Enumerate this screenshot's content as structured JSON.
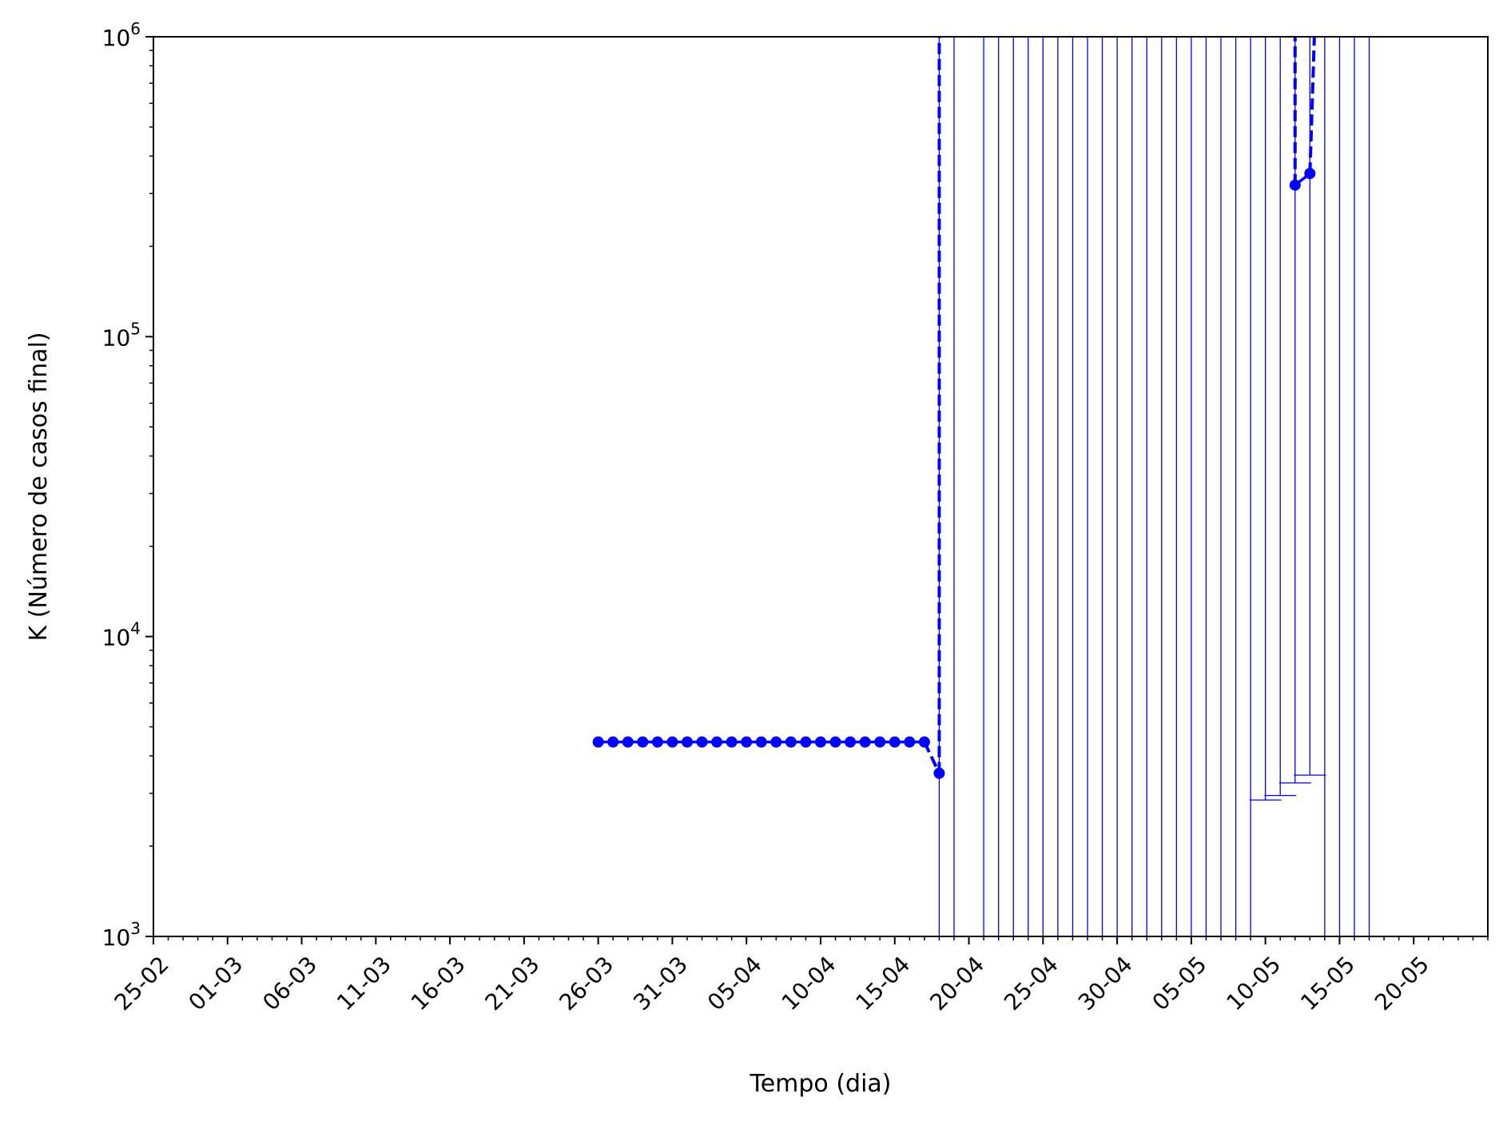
{
  "chart_data": {
    "type": "line",
    "title": "",
    "xlabel": "Tempo (dia)",
    "ylabel": "K (Número de casos final)",
    "yscale": "log",
    "ylim": [
      1000,
      1000000
    ],
    "xlim": [
      "2020-02-25",
      "2020-05-25"
    ],
    "grid": false,
    "legend": "none",
    "color": "#0000ff",
    "y_ticks": [
      {
        "value": 1000,
        "base": "10",
        "exp": "3"
      },
      {
        "value": 10000,
        "base": "10",
        "exp": "4"
      },
      {
        "value": 100000,
        "base": "10",
        "exp": "5"
      },
      {
        "value": 1000000,
        "base": "10",
        "exp": "6"
      }
    ],
    "x_ticks": [
      {
        "date": "2020-02-25",
        "label": "25-02"
      },
      {
        "date": "2020-03-01",
        "label": "01-03"
      },
      {
        "date": "2020-03-06",
        "label": "06-03"
      },
      {
        "date": "2020-03-11",
        "label": "11-03"
      },
      {
        "date": "2020-03-16",
        "label": "16-03"
      },
      {
        "date": "2020-03-21",
        "label": "21-03"
      },
      {
        "date": "2020-03-26",
        "label": "26-03"
      },
      {
        "date": "2020-03-31",
        "label": "31-03"
      },
      {
        "date": "2020-04-05",
        "label": "05-04"
      },
      {
        "date": "2020-04-10",
        "label": "10-04"
      },
      {
        "date": "2020-04-15",
        "label": "15-04"
      },
      {
        "date": "2020-04-20",
        "label": "20-04"
      },
      {
        "date": "2020-04-25",
        "label": "25-04"
      },
      {
        "date": "2020-04-30",
        "label": "30-04"
      },
      {
        "date": "2020-05-05",
        "label": "05-05"
      },
      {
        "date": "2020-05-10",
        "label": "10-05"
      },
      {
        "date": "2020-05-15",
        "label": "15-05"
      },
      {
        "date": "2020-05-20",
        "label": "20-05"
      }
    ],
    "series": [
      {
        "points": [
          {
            "x": "2020-03-26",
            "y": 4450
          },
          {
            "x": "2020-03-27",
            "y": 4450
          },
          {
            "x": "2020-03-28",
            "y": 4450
          },
          {
            "x": "2020-03-29",
            "y": 4450
          },
          {
            "x": "2020-03-30",
            "y": 4450
          },
          {
            "x": "2020-03-31",
            "y": 4450
          },
          {
            "x": "2020-04-01",
            "y": 4450
          },
          {
            "x": "2020-04-02",
            "y": 4450
          },
          {
            "x": "2020-04-03",
            "y": 4450
          },
          {
            "x": "2020-04-04",
            "y": 4450
          },
          {
            "x": "2020-04-05",
            "y": 4450
          },
          {
            "x": "2020-04-06",
            "y": 4450
          },
          {
            "x": "2020-04-07",
            "y": 4450
          },
          {
            "x": "2020-04-08",
            "y": 4450
          },
          {
            "x": "2020-04-09",
            "y": 4450
          },
          {
            "x": "2020-04-10",
            "y": 4450
          },
          {
            "x": "2020-04-11",
            "y": 4450
          },
          {
            "x": "2020-04-12",
            "y": 4450
          },
          {
            "x": "2020-04-13",
            "y": 4450
          },
          {
            "x": "2020-04-14",
            "y": 4450
          },
          {
            "x": "2020-04-15",
            "y": 4450
          },
          {
            "x": "2020-04-16",
            "y": 4450
          },
          {
            "x": "2020-04-17",
            "y": 4450
          },
          {
            "x": "2020-04-18",
            "y": 3500
          },
          {
            "x": "2020-05-12",
            "y": 320000
          },
          {
            "x": "2020-05-13",
            "y": 350000
          }
        ],
        "lower_errors": [
          {
            "x": "2020-04-18",
            "y": 1000
          },
          {
            "x": "2020-04-19",
            "y": 1000
          },
          {
            "x": "2020-04-21",
            "y": 1000
          },
          {
            "x": "2020-04-22",
            "y": 1000
          },
          {
            "x": "2020-04-23",
            "y": 1000
          },
          {
            "x": "2020-04-24",
            "y": 1000
          },
          {
            "x": "2020-04-25",
            "y": 1000
          },
          {
            "x": "2020-04-26",
            "y": 1000
          },
          {
            "x": "2020-04-27",
            "y": 1000
          },
          {
            "x": "2020-04-28",
            "y": 1000
          },
          {
            "x": "2020-04-29",
            "y": 1000
          },
          {
            "x": "2020-04-30",
            "y": 1000
          },
          {
            "x": "2020-05-01",
            "y": 1000
          },
          {
            "x": "2020-05-02",
            "y": 1000
          },
          {
            "x": "2020-05-03",
            "y": 1000
          },
          {
            "x": "2020-05-04",
            "y": 1000
          },
          {
            "x": "2020-05-05",
            "y": 1000
          },
          {
            "x": "2020-05-06",
            "y": 1000
          },
          {
            "x": "2020-05-07",
            "y": 1000
          },
          {
            "x": "2020-05-08",
            "y": 1000
          },
          {
            "x": "2020-05-09",
            "y": 1000
          },
          {
            "x": "2020-05-10",
            "y": 2850
          },
          {
            "x": "2020-05-11",
            "y": 2950
          },
          {
            "x": "2020-05-12",
            "y": 3250
          },
          {
            "x": "2020-05-13",
            "y": 3450
          },
          {
            "x": "2020-05-14",
            "y": 1000
          },
          {
            "x": "2020-05-15",
            "y": 1000
          },
          {
            "x": "2020-05-16",
            "y": 1000
          },
          {
            "x": "2020-05-17",
            "y": 1000
          }
        ],
        "dashed_segments": [
          [
            {
              "x": "2020-04-17",
              "y": 4450
            },
            {
              "x": "2020-04-18",
              "y": 3500
            }
          ],
          [
            {
              "x": "2020-04-18",
              "y": 3500
            },
            {
              "x": "2020-04-18",
              "y": 1000000
            }
          ],
          [
            {
              "x": "2020-05-12",
              "y": 320000
            },
            {
              "x": "2020-05-12",
              "y": 1000000
            }
          ],
          [
            {
              "x": "2020-05-13",
              "y": 350000
            },
            {
              "x": "2020-05-13.3",
              "y": 1000000
            }
          ]
        ]
      }
    ]
  }
}
